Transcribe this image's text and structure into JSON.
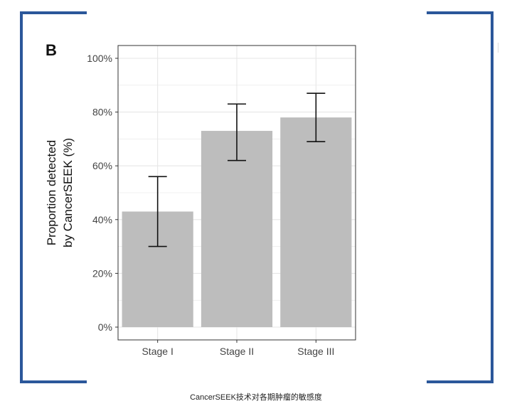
{
  "figure": {
    "panel_letter": "B",
    "caption": "CancerSEEK技术对各期肿瘤的敏感度"
  },
  "colors": {
    "frame": "#2b579a",
    "bar": "#bdbdbd",
    "grid": "#e6e6e6",
    "axis": "#333333",
    "error_bar": "#111111"
  },
  "chart_data": {
    "type": "bar",
    "title": "",
    "xlabel": "",
    "ylabel_lines": [
      "Proportion detected",
      "by CancerSEEK (%)"
    ],
    "categories": [
      "Stage I",
      "Stage II",
      "Stage III"
    ],
    "values": [
      43,
      73,
      78
    ],
    "error_lower": [
      30,
      62,
      69
    ],
    "error_upper": [
      56,
      83,
      87
    ],
    "ylim": [
      0,
      100
    ],
    "yticks": [
      0,
      20,
      40,
      60,
      80,
      100
    ],
    "ytick_labels": [
      "0%",
      "20%",
      "40%",
      "60%",
      "80%",
      "100%"
    ],
    "grid": true,
    "legend": "none"
  }
}
